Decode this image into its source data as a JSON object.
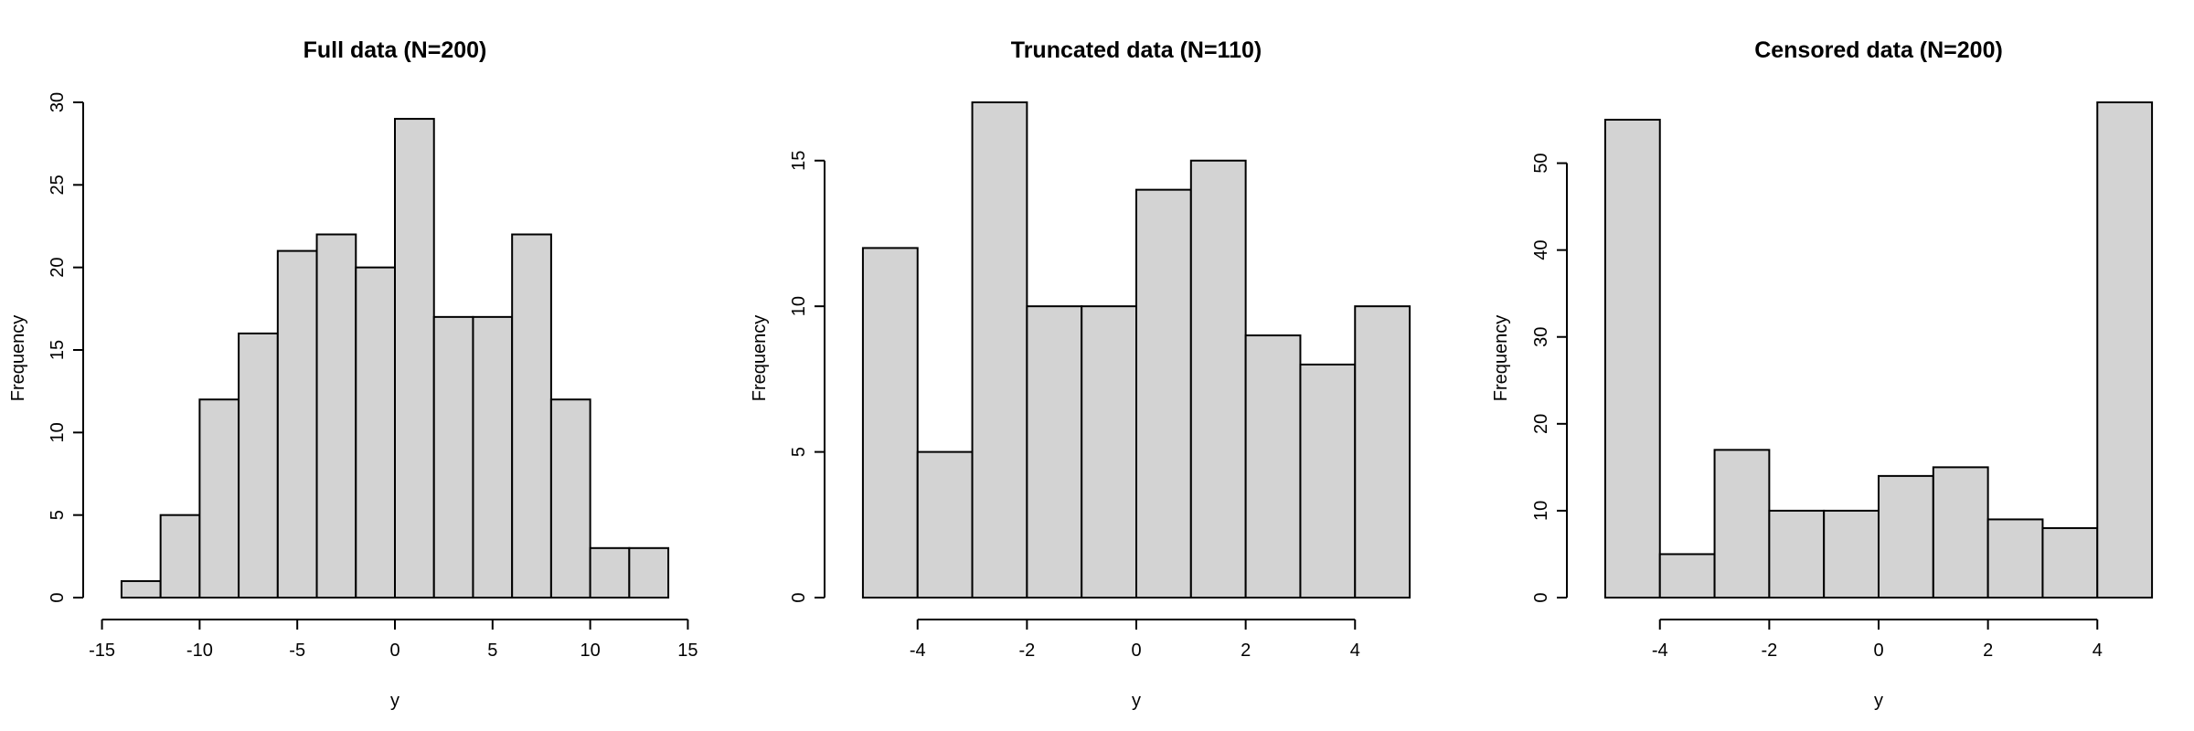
{
  "chart_data": [
    {
      "type": "bar",
      "title": "Full data (N=200)",
      "xlabel": "y",
      "ylabel": "Frequency",
      "bin_edges": [
        -14,
        -12,
        -10,
        -8,
        -6,
        -4,
        -2,
        0,
        2,
        4,
        6,
        8,
        10,
        12,
        14
      ],
      "values": [
        1,
        5,
        12,
        16,
        21,
        22,
        20,
        29,
        17,
        17,
        22,
        12,
        3,
        3
      ],
      "xlim": [
        -15,
        15
      ],
      "ylim": [
        0,
        30
      ],
      "xticks": [
        -15,
        -10,
        -5,
        0,
        5,
        10,
        15
      ],
      "xtick_labels": [
        "-15",
        "-10",
        "-5",
        "0",
        "5",
        "10",
        "15"
      ],
      "yticks": [
        0,
        5,
        10,
        15,
        20,
        25,
        30
      ],
      "ytick_labels": [
        "0",
        "5",
        "10",
        "15",
        "20",
        "25",
        "30"
      ],
      "grid": false
    },
    {
      "type": "bar",
      "title": "Truncated data (N=110)",
      "xlabel": "y",
      "ylabel": "Frequency",
      "bin_edges": [
        -5,
        -4,
        -3,
        -2,
        -1,
        0,
        1,
        2,
        3,
        4,
        5
      ],
      "values": [
        12,
        5,
        17,
        10,
        10,
        14,
        15,
        9,
        8,
        10
      ],
      "xlim": [
        -4,
        4
      ],
      "ylim": [
        0,
        15
      ],
      "xticks": [
        -4,
        -2,
        0,
        2,
        4
      ],
      "xtick_labels": [
        "-4",
        "-2",
        "0",
        "2",
        "4"
      ],
      "yticks": [
        0,
        5,
        10,
        15
      ],
      "ytick_labels": [
        "0",
        "5",
        "10",
        "15"
      ],
      "grid": false
    },
    {
      "type": "bar",
      "title": "Censored data (N=200)",
      "xlabel": "y",
      "ylabel": "Frequency",
      "bin_edges": [
        -5,
        -4,
        -3,
        -2,
        -1,
        0,
        1,
        2,
        3,
        4,
        5
      ],
      "values": [
        55,
        5,
        17,
        10,
        10,
        14,
        15,
        9,
        8,
        57
      ],
      "xlim": [
        -4,
        4
      ],
      "ylim": [
        0,
        50
      ],
      "xticks": [
        -4,
        -2,
        0,
        2,
        4
      ],
      "xtick_labels": [
        "-4",
        "-2",
        "0",
        "2",
        "4"
      ],
      "yticks": [
        0,
        10,
        20,
        30,
        40,
        50
      ],
      "ytick_labels": [
        "0",
        "10",
        "20",
        "30",
        "40",
        "50"
      ],
      "grid": false
    }
  ]
}
